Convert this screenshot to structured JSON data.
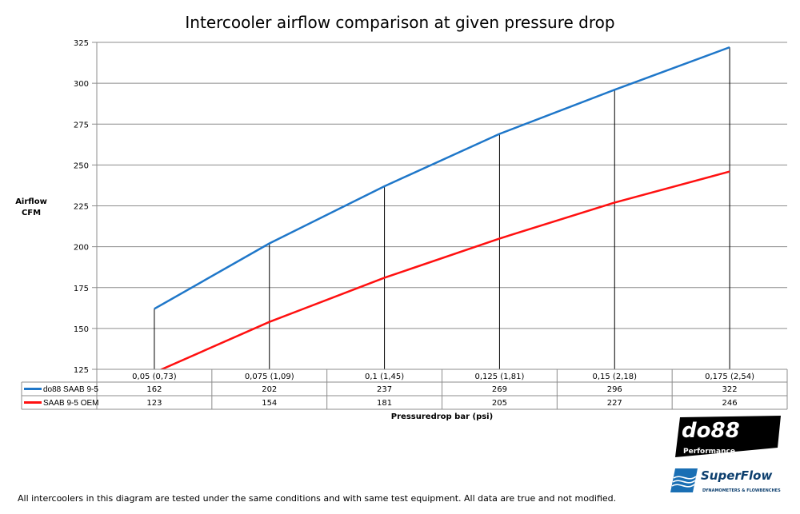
{
  "chart_data": {
    "type": "line",
    "title": "Intercooler airflow comparison at given pressure drop",
    "ylabel": [
      "Airflow",
      "CFM"
    ],
    "xlabel": "Pressuredrop bar (psi)",
    "ylim": [
      125,
      325
    ],
    "yticks": [
      125,
      150,
      175,
      200,
      225,
      250,
      275,
      300,
      325
    ],
    "grid": true,
    "legend": "data-table",
    "categories": [
      "0,05 (0,73)",
      "0,075 (1,09)",
      "0,1 (1,45)",
      "0,125 (1,81)",
      "0,15 (2,18)",
      "0,175 (2,54)"
    ],
    "series": [
      {
        "name": "do88 SAAB 9-5",
        "color": "#1f77c9",
        "values": [
          162,
          202,
          237,
          269,
          296,
          322
        ]
      },
      {
        "name": "SAAB 9-5 OEM",
        "color": "#ff1010",
        "values": [
          123,
          154,
          181,
          205,
          227,
          246
        ]
      }
    ]
  },
  "footnote": "All intercoolers in this diagram are tested under the same conditions and with same test equipment. All data are true and not modified.",
  "logos": {
    "do88": "do88 Performance",
    "superflow": "SuperFlow Dynamometers & Flowbenches"
  }
}
